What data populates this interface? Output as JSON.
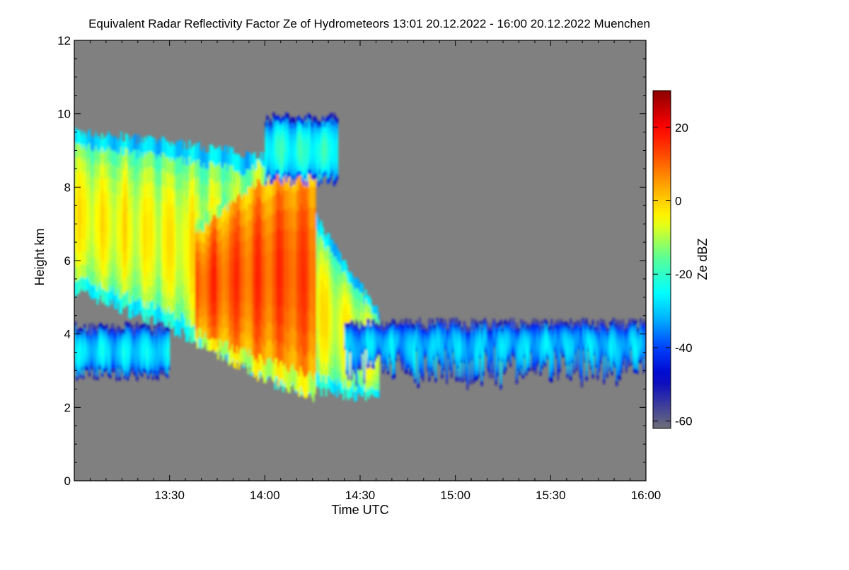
{
  "chart_data": {
    "type": "heatmap",
    "title": "Equivalent Radar Reflectivity Factor Ze of Hydrometeors   13:01 20.12.2022 - 16:00 20.12.2022 Muenchen",
    "xlabel": "Time UTC",
    "ylabel": "Height km",
    "xlim": [
      "13:01",
      "16:01"
    ],
    "ylim": [
      0,
      12
    ],
    "x_ticks": [
      "13:30",
      "14:00",
      "14:30",
      "15:00",
      "15:30",
      "16:00"
    ],
    "x_tick_minutes": [
      30,
      60,
      90,
      120,
      150,
      180
    ],
    "y_ticks": [
      0,
      2,
      4,
      6,
      8,
      10,
      12
    ],
    "colorbar": {
      "label": "Ze dBZ",
      "range": [
        -62,
        30
      ],
      "ticks": [
        20,
        0,
        -20,
        -40,
        -60
      ],
      "colormap": [
        "#6e6e78",
        "#0000c8",
        "#0040ff",
        "#00b4ff",
        "#00ffff",
        "#60ff90",
        "#ffff00",
        "#ffb000",
        "#ff5000",
        "#ff0000",
        "#8c0000"
      ],
      "colormap_stops": [
        -62,
        -48,
        -40,
        -32,
        -25,
        -15,
        -5,
        3,
        12,
        20,
        30
      ]
    },
    "background_color": "#808080",
    "regions": [
      {
        "name": "upper-cloud",
        "t_start": 0,
        "t_end": 96,
        "base_km": [
          5.2,
          4.1,
          2.6,
          2.2
        ],
        "top_km": [
          9.5,
          9.2,
          8.8,
          4.5
        ],
        "core_dBZ": -5
      },
      {
        "name": "fall-streak-core",
        "t_start": 38,
        "t_end": 76,
        "base_km": [
          3.8,
          2.9,
          2.3
        ],
        "top_km": [
          7.0,
          8.6,
          9.3
        ],
        "core_dBZ": 12
      },
      {
        "name": "high-fragment",
        "t_start": 60,
        "t_end": 83,
        "base_km": [
          8.2
        ],
        "top_km": [
          9.9
        ],
        "core_dBZ": -22
      },
      {
        "name": "low-layer",
        "t_start": 0,
        "t_end": 30,
        "base_km": [
          2.9
        ],
        "top_km": [
          4.2
        ],
        "core_dBZ": -28
      },
      {
        "name": "shallow-layer",
        "t_start": 85,
        "t_end": 180,
        "base_km": [
          2.6
        ],
        "top_km": [
          4.3
        ],
        "core_dBZ": -30
      }
    ]
  }
}
